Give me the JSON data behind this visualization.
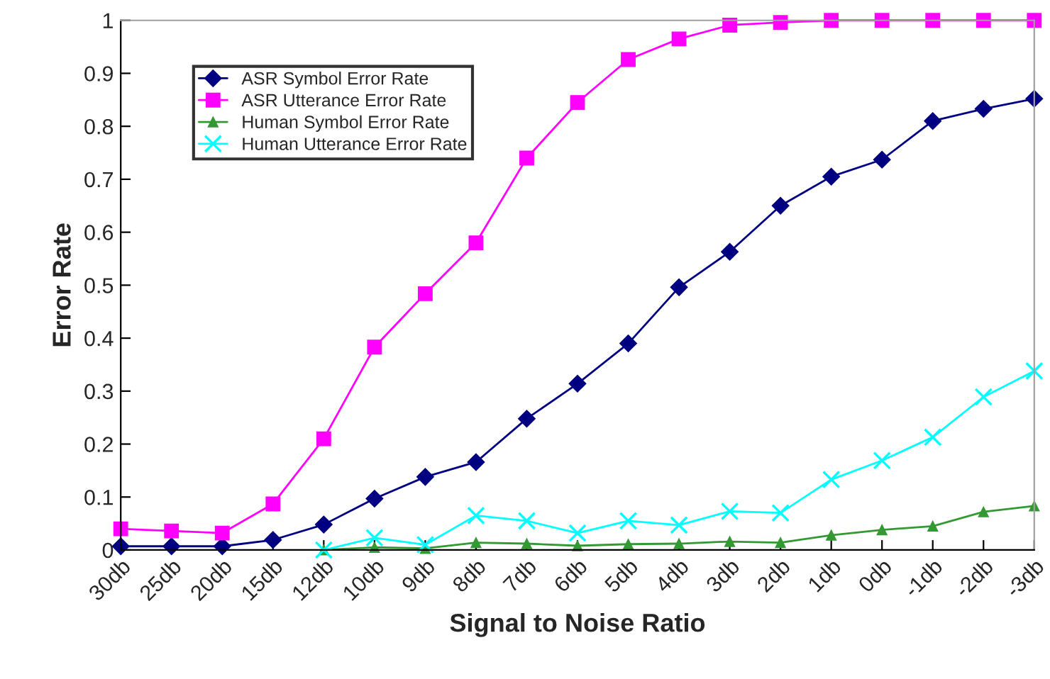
{
  "chart_data": {
    "type": "line",
    "xlabel": "Signal to Noise Ratio",
    "ylabel": "Error Rate",
    "categories": [
      "30db",
      "25db",
      "20db",
      "15db",
      "12db",
      "10db",
      "9db",
      "8db",
      "7db",
      "6db",
      "5db",
      "4db",
      "3db",
      "2db",
      "1db",
      "0db",
      "-1db",
      "-2db",
      "-3db"
    ],
    "ylim": [
      0,
      1
    ],
    "yticks": [
      0,
      0.1,
      0.2,
      0.3,
      0.4,
      0.5,
      0.6,
      0.7,
      0.8,
      0.9,
      1
    ],
    "grid": false,
    "legend": "top left",
    "series": [
      {
        "name": "ASR Symbol Error Rate",
        "color": "#000080",
        "marker": "diamond",
        "values": [
          0.007,
          0.007,
          0.007,
          0.019,
          0.048,
          0.097,
          0.138,
          0.166,
          0.248,
          0.314,
          0.39,
          0.496,
          0.563,
          0.65,
          0.705,
          0.737,
          0.81,
          0.833,
          0.852
        ]
      },
      {
        "name": "ASR Utterance Error Rate",
        "color": "#ff00ff",
        "marker": "square",
        "values": [
          0.04,
          0.036,
          0.032,
          0.087,
          0.21,
          0.383,
          0.484,
          0.58,
          0.74,
          0.845,
          0.926,
          0.965,
          0.991,
          0.996,
          1,
          1,
          1,
          1,
          1
        ]
      },
      {
        "name": "Human Symbol Error Rate",
        "color": "#339933",
        "marker": "triangle",
        "values": [
          null,
          null,
          null,
          null,
          0.0,
          0.005,
          0.003,
          0.014,
          0.012,
          0.008,
          0.011,
          0.012,
          0.016,
          0.014,
          0.028,
          0.038,
          0.045,
          0.072,
          0.083
        ]
      },
      {
        "name": "Human Utterance Error Rate",
        "color": "#00ffff",
        "marker": "cross",
        "values": [
          null,
          null,
          null,
          null,
          0.0,
          0.023,
          0.01,
          0.065,
          0.055,
          0.032,
          0.055,
          0.047,
          0.073,
          0.07,
          0.133,
          0.169,
          0.213,
          0.289,
          0.338
        ]
      }
    ]
  }
}
